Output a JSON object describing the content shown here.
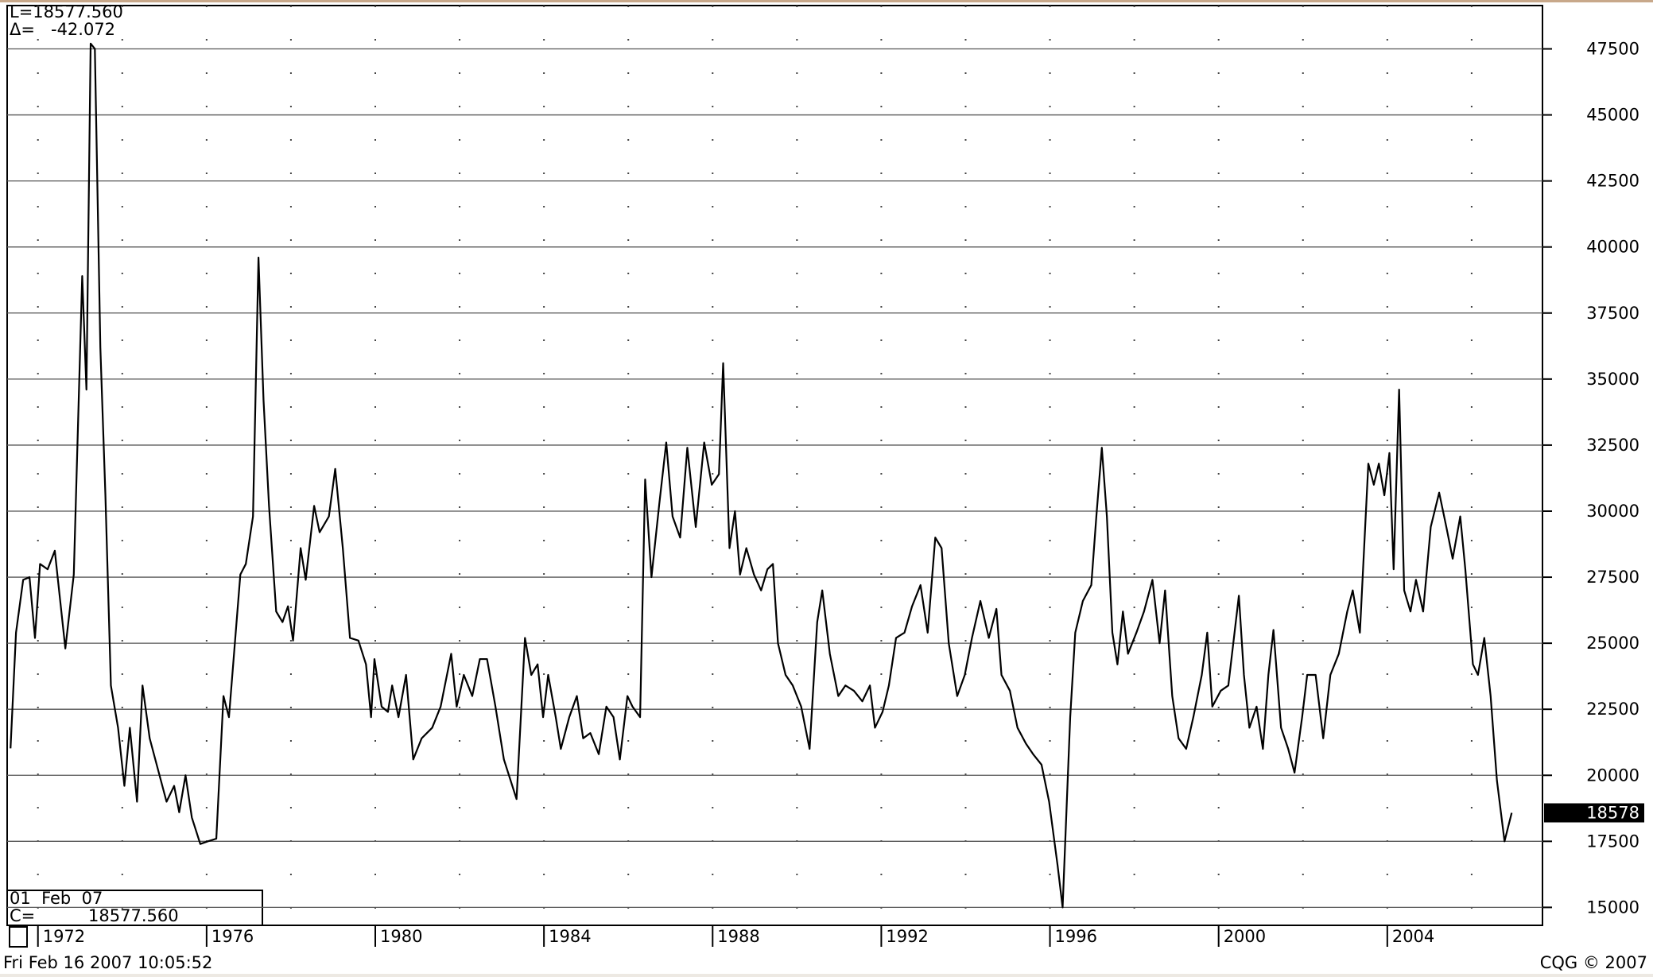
{
  "chart_data": {
    "type": "line",
    "header_lines": [
      "L=18577.560",
      "Δ=   -42.072"
    ],
    "info_box": [
      "01  Feb  07",
      "C=          18577.560"
    ],
    "footer_left": "Fri Feb 16 2007 10:05:52",
    "footer_right": "CQG © 2007",
    "last_tag": 18578,
    "color": "#000000",
    "xlim": [
      1971.27,
      2007.68
    ],
    "ylim": [
      14320,
      49140
    ],
    "xticks": [
      1972,
      1976,
      1980,
      1984,
      1988,
      1992,
      1996,
      2000,
      2004
    ],
    "x_minor_ticks": [
      1972,
      1974,
      1976,
      1978,
      1980,
      1982,
      1984,
      1986,
      1988,
      1990,
      1992,
      1994,
      1996,
      1998,
      2000,
      2002,
      2004,
      2006
    ],
    "yticks": [
      15000,
      17500,
      20000,
      22500,
      25000,
      27500,
      30000,
      32500,
      35000,
      37500,
      40000,
      42500,
      45000,
      47500
    ],
    "grid": true,
    "x": [
      1971.35,
      1971.48,
      1971.65,
      1971.8,
      1971.93,
      1972.05,
      1972.23,
      1972.4,
      1972.65,
      1972.85,
      1973.05,
      1973.15,
      1973.25,
      1973.35,
      1973.48,
      1973.6,
      1973.73,
      1973.9,
      1974.05,
      1974.18,
      1974.35,
      1974.48,
      1974.65,
      1974.85,
      1975.05,
      1975.23,
      1975.35,
      1975.5,
      1975.65,
      1975.85,
      1976.03,
      1976.23,
      1976.4,
      1976.53,
      1976.65,
      1976.8,
      1976.93,
      1977.1,
      1977.23,
      1977.35,
      1977.48,
      1977.65,
      1977.8,
      1977.93,
      1978.05,
      1978.23,
      1978.35,
      1978.55,
      1978.68,
      1978.9,
      1979.05,
      1979.23,
      1979.4,
      1979.6,
      1979.78,
      1979.9,
      1979.98,
      1980.15,
      1980.3,
      1980.4,
      1980.55,
      1980.73,
      1980.9,
      1981.1,
      1981.35,
      1981.55,
      1981.8,
      1981.93,
      1982.1,
      1982.3,
      1982.48,
      1982.65,
      1982.85,
      1983.05,
      1983.35,
      1983.55,
      1983.7,
      1983.85,
      1983.98,
      1984.1,
      1984.28,
      1984.4,
      1984.6,
      1984.78,
      1984.93,
      1985.1,
      1985.3,
      1985.48,
      1985.65,
      1985.8,
      1985.98,
      1986.1,
      1986.28,
      1986.4,
      1986.55,
      1986.73,
      1986.9,
      1987.05,
      1987.23,
      1987.4,
      1987.6,
      1987.8,
      1987.98,
      1988.15,
      1988.25,
      1988.4,
      1988.53,
      1988.65,
      1988.8,
      1988.98,
      1989.15,
      1989.3,
      1989.43,
      1989.55,
      1989.73,
      1989.9,
      1990.1,
      1990.3,
      1990.48,
      1990.6,
      1990.78,
      1990.98,
      1991.15,
      1991.35,
      1991.55,
      1991.73,
      1991.85,
      1992.03,
      1992.18,
      1992.35,
      1992.55,
      1992.73,
      1992.93,
      1993.1,
      1993.28,
      1993.43,
      1993.6,
      1993.8,
      1993.98,
      1994.15,
      1994.35,
      1994.55,
      1994.73,
      1994.85,
      1995.05,
      1995.23,
      1995.43,
      1995.6,
      1995.8,
      1995.98,
      1996.18,
      1996.3,
      1996.48,
      1996.6,
      1996.78,
      1996.98,
      1997.1,
      1997.23,
      1997.35,
      1997.48,
      1997.6,
      1997.73,
      1997.85,
      1998.05,
      1998.23,
      1998.43,
      1998.6,
      1998.73,
      1998.9,
      1999.05,
      1999.23,
      1999.4,
      1999.6,
      1999.73,
      1999.85,
      2000.05,
      2000.23,
      2000.48,
      2000.6,
      2000.73,
      2000.9,
      2001.05,
      2001.18,
      2001.3,
      2001.48,
      2001.65,
      2001.8,
      2001.98,
      2002.1,
      2002.3,
      2002.48,
      2002.65,
      2002.85,
      2003.05,
      2003.18,
      2003.35,
      2003.55,
      2003.68,
      2003.8,
      2003.93,
      2004.05,
      2004.15,
      2004.28,
      2004.4,
      2004.55,
      2004.68,
      2004.85,
      2005.03,
      2005.23,
      2005.4,
      2005.55,
      2005.73,
      2005.85,
      2006.03,
      2006.15,
      2006.3,
      2006.45,
      2006.6,
      2006.78,
      2006.95
    ],
    "values": [
      21020,
      25400,
      27400,
      27500,
      25200,
      28000,
      27800,
      28500,
      24800,
      27600,
      38900,
      34600,
      47700,
      47500,
      36200,
      30600,
      23400,
      21800,
      19600,
      21800,
      19000,
      23400,
      21400,
      20200,
      19000,
      19600,
      18600,
      20000,
      18400,
      17400,
      17500,
      17600,
      23000,
      22200,
      24600,
      27600,
      28000,
      29800,
      39600,
      34200,
      30200,
      26200,
      25800,
      26400,
      25100,
      28600,
      27400,
      30200,
      29200,
      29800,
      31600,
      28600,
      25200,
      25100,
      24200,
      22200,
      24400,
      22600,
      22400,
      23400,
      22200,
      23800,
      20600,
      21400,
      21800,
      22600,
      24600,
      22600,
      23800,
      23000,
      24400,
      24400,
      22600,
      20600,
      19100,
      25200,
      23800,
      24200,
      22200,
      23800,
      22200,
      21000,
      22200,
      23000,
      21400,
      21600,
      20800,
      22600,
      22200,
      20600,
      23000,
      22600,
      22200,
      31200,
      27500,
      30200,
      32600,
      29800,
      29000,
      32400,
      29400,
      32600,
      31000,
      31400,
      35600,
      28600,
      30000,
      27600,
      28600,
      27600,
      27000,
      27800,
      28000,
      25000,
      23800,
      23400,
      22600,
      21000,
      25800,
      27000,
      24600,
      23000,
      23400,
      23200,
      22800,
      23400,
      21800,
      22400,
      23400,
      25200,
      25400,
      26400,
      27200,
      25400,
      29000,
      28600,
      25000,
      23000,
      23800,
      25200,
      26600,
      25200,
      26300,
      23800,
      23200,
      21800,
      21200,
      20800,
      20400,
      19000,
      16600,
      15000,
      22200,
      25400,
      26600,
      27200,
      29800,
      32400,
      29800,
      25400,
      24200,
      26200,
      24600,
      25400,
      26200,
      27400,
      25000,
      27000,
      23000,
      21400,
      21000,
      22200,
      23800,
      25400,
      22600,
      23200,
      23400,
      26800,
      23800,
      21800,
      22600,
      21000,
      23800,
      25500,
      21800,
      21000,
      20100,
      22200,
      23800,
      23800,
      21400,
      23800,
      24600,
      26200,
      27000,
      25400,
      31800,
      31000,
      31800,
      30600,
      32200,
      27800,
      34600,
      27000,
      26200,
      27400,
      26200,
      29400,
      30700,
      29400,
      28200,
      29800,
      27800,
      24200,
      23800,
      25200,
      23000,
      19800,
      17500,
      18577.56
    ]
  }
}
